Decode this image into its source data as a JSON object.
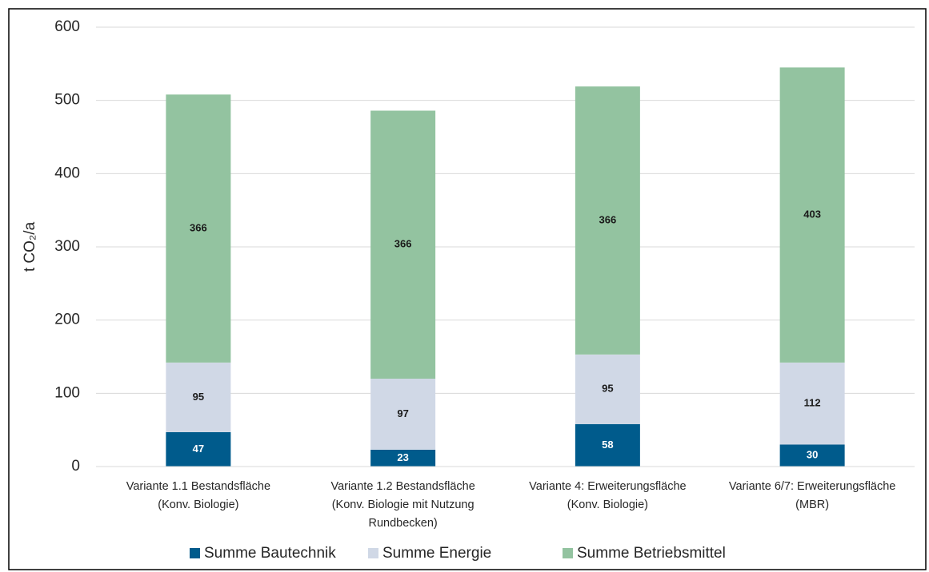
{
  "chart_data": {
    "type": "stacked_bar",
    "ylabel": "t CO₂/a",
    "categories": [
      [
        "Variante 1.1  Bestandsfläche",
        "(Konv. Biologie)"
      ],
      [
        "Variante 1.2 Bestandsfläche",
        "(Konv. Biologie mit Nutzung",
        "Rundbecken)"
      ],
      [
        "Variante 4: Erweiterungsfläche",
        "(Konv. Biologie)"
      ],
      [
        "Variante 6/7: Erweiterungsfläche",
        "(MBR)"
      ]
    ],
    "series": [
      {
        "name": "Summe Bautechnik",
        "color": "#005b8c",
        "label_color": "#ffffff",
        "values": [
          47,
          23,
          58,
          30
        ]
      },
      {
        "name": "Summe Energie",
        "color": "#d0d8e6",
        "label_color": "#1a1a1a",
        "values": [
          95,
          97,
          95,
          112
        ]
      },
      {
        "name": "Summe Betriebsmittel",
        "color": "#93c3a0",
        "label_color": "#1a1a1a",
        "values": [
          366,
          366,
          366,
          403
        ]
      }
    ],
    "ylim": [
      0,
      600
    ],
    "yticks": [
      0,
      100,
      200,
      300,
      400,
      500,
      600
    ],
    "grid": true,
    "legend": "bottom"
  }
}
